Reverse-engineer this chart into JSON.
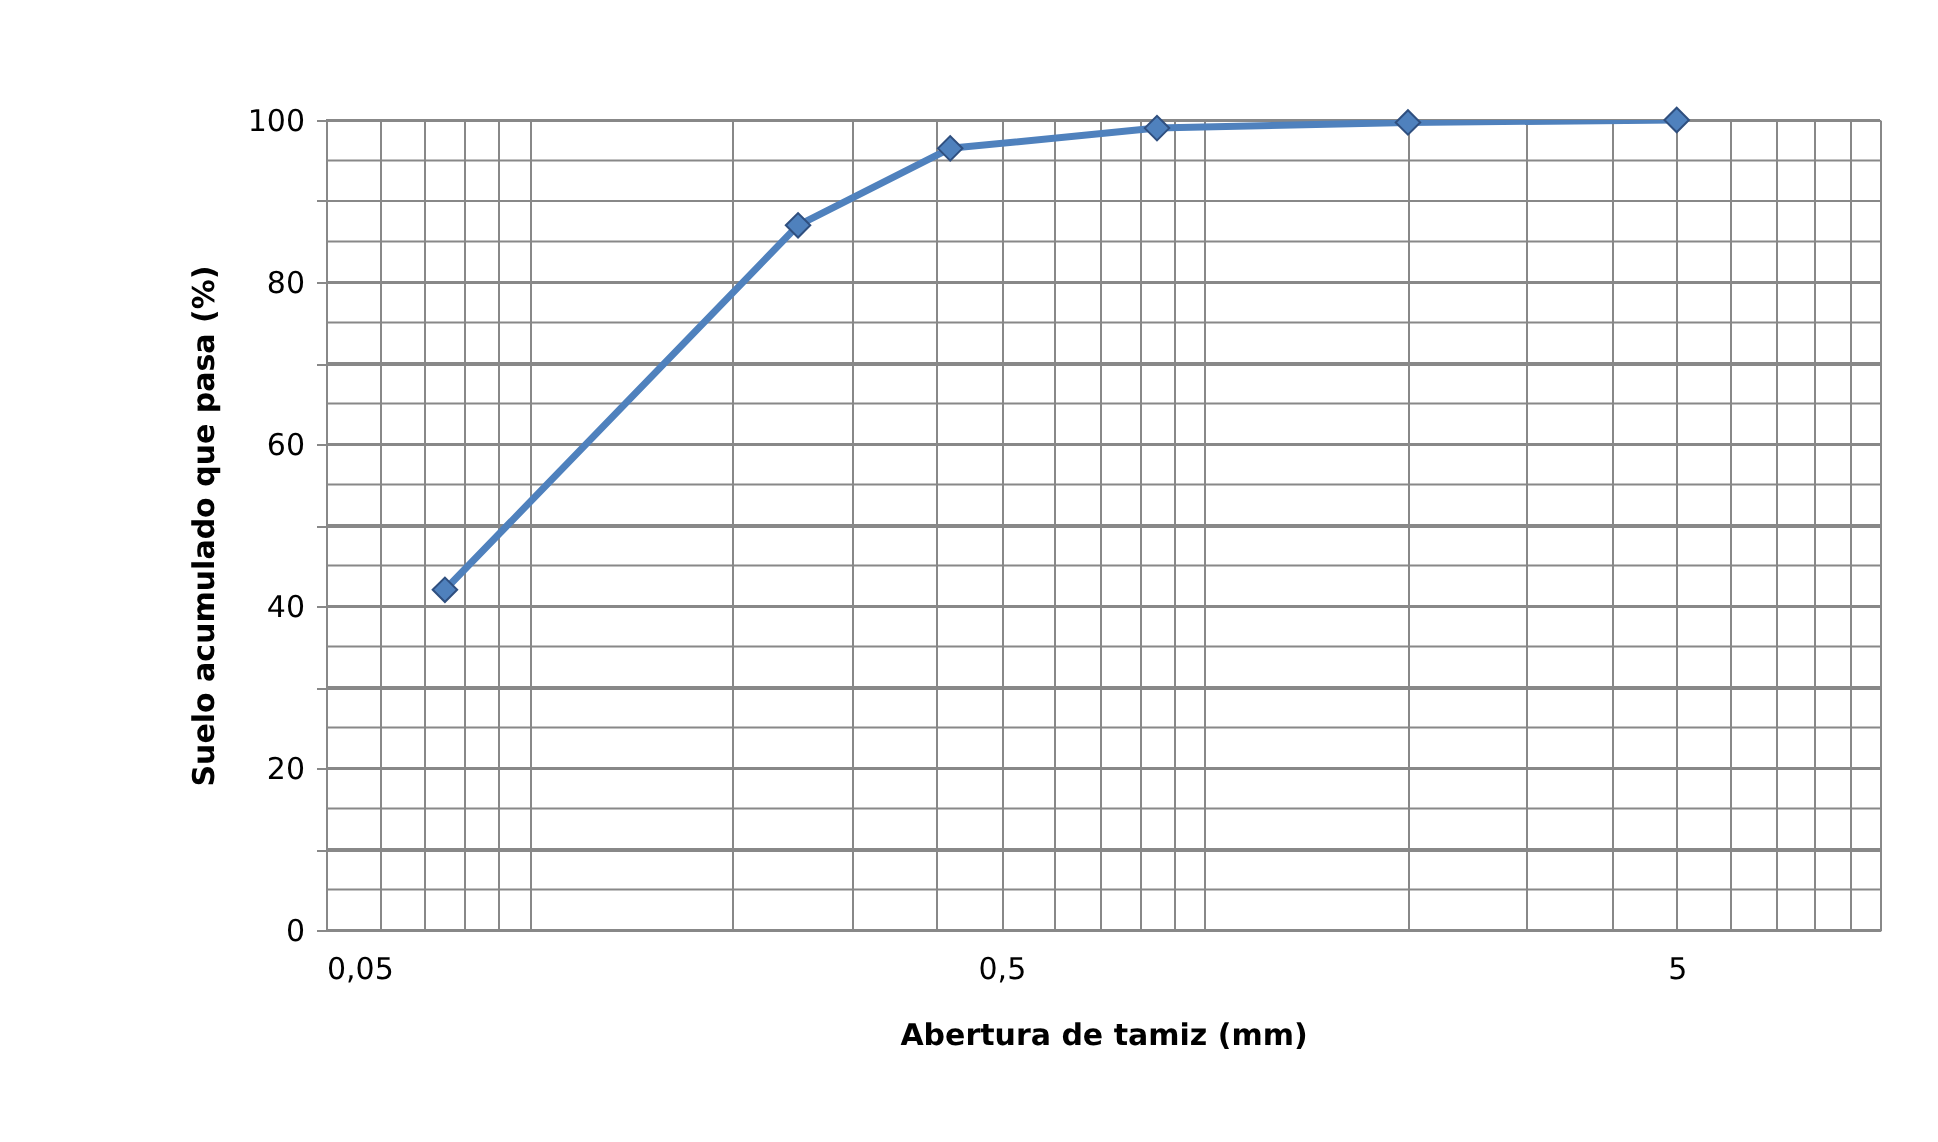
{
  "chart_data": {
    "type": "line",
    "xlabel": "Abertura de tamiz (mm)",
    "ylabel": "Suelo  acumulado que pasa (%)",
    "x": [
      0.075,
      0.25,
      0.42,
      0.85,
      2.0,
      5.0
    ],
    "series": [
      {
        "color": "#4f81bd",
        "values": [
          42,
          87,
          96.5,
          99,
          99.7,
          100
        ]
      }
    ],
    "log": "x",
    "xlim": [
      0.05,
      10
    ],
    "ylim": [
      0,
      100
    ],
    "xticks": [
      {
        "value": 0.05,
        "label": "0,05"
      },
      {
        "value": 0.06,
        "label": null
      },
      {
        "value": 0.07,
        "label": null
      },
      {
        "value": 0.08,
        "label": null
      },
      {
        "value": 0.09,
        "label": null
      },
      {
        "value": 0.1,
        "label": null
      },
      {
        "value": 0.2,
        "label": null
      },
      {
        "value": 0.3,
        "label": null
      },
      {
        "value": 0.4,
        "label": null
      },
      {
        "value": 0.5,
        "label": "0,5"
      },
      {
        "value": 0.6,
        "label": null
      },
      {
        "value": 0.7,
        "label": null
      },
      {
        "value": 0.8,
        "label": null
      },
      {
        "value": 0.9,
        "label": null
      },
      {
        "value": 1,
        "label": null
      },
      {
        "value": 2,
        "label": null
      },
      {
        "value": 3,
        "label": null
      },
      {
        "value": 4,
        "label": null
      },
      {
        "value": 5,
        "label": "5"
      },
      {
        "value": 6,
        "label": null
      },
      {
        "value": 7,
        "label": null
      },
      {
        "value": 8,
        "label": null
      },
      {
        "value": 9,
        "label": null
      },
      {
        "value": 10,
        "label": null
      }
    ],
    "yticks": [
      0,
      {
        "value": 5,
        "label": null
      },
      {
        "value": 10,
        "label": null
      },
      {
        "value": 15,
        "label": null
      },
      20,
      {
        "value": 25,
        "label": null
      },
      {
        "value": 30,
        "label": null
      },
      {
        "value": 35,
        "label": null
      },
      40,
      {
        "value": 45,
        "label": null
      },
      {
        "value": 50,
        "label": null
      },
      {
        "value": 55,
        "label": null
      },
      60,
      {
        "value": 65,
        "label": null
      },
      {
        "value": 70,
        "label": null
      },
      {
        "value": 75,
        "label": null
      },
      80,
      {
        "value": 85,
        "label": null
      },
      {
        "value": 90,
        "label": null
      },
      {
        "value": 95,
        "label": null
      },
      100
    ],
    "grid": true,
    "marker": "diamond",
    "line_style": "solid"
  }
}
